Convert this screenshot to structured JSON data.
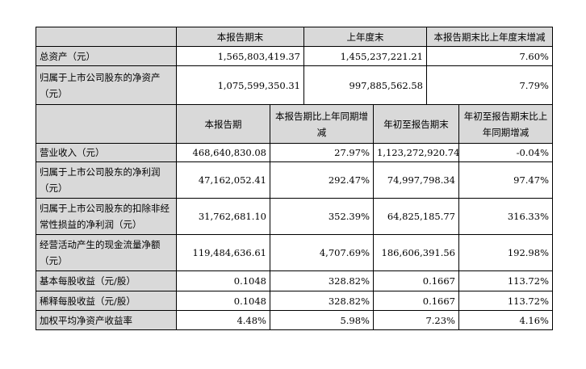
{
  "section1": {
    "headers": [
      "本报告期末",
      "上年度末",
      "本报告期末比上年度末增减"
    ],
    "rows": [
      {
        "label": "总资产（元）",
        "v1": "1,565,803,419.37",
        "v2": "1,455,237,221.21",
        "v3": "7.60%"
      },
      {
        "label": "归属于上市公司股东的净资产（元）",
        "v1": "1,075,599,350.31",
        "v2": "997,885,562.58",
        "v3": "7.79%"
      }
    ]
  },
  "section2": {
    "headers": [
      "本报告期",
      "本报告期比上年同期增减",
      "年初至报告期末",
      "年初至报告期末比上年同期增减"
    ],
    "rows": [
      {
        "label": "营业收入（元）",
        "v1": "468,640,830.08",
        "v2": "27.97%",
        "v3": "1,123,272,920.74",
        "v4": "-0.04%"
      },
      {
        "label": "归属于上市公司股东的净利润（元）",
        "v1": "47,162,052.41",
        "v2": "292.47%",
        "v3": "74,997,798.34",
        "v4": "97.47%"
      },
      {
        "label": "归属于上市公司股东的扣除非经常性损益的净利润（元）",
        "v1": "31,762,681.10",
        "v2": "352.39%",
        "v3": "64,825,185.77",
        "v4": "316.33%"
      },
      {
        "label": "经营活动产生的现金流量净额（元）",
        "v1": "119,484,636.61",
        "v2": "4,707.69%",
        "v3": "186,606,391.56",
        "v4": "192.98%"
      },
      {
        "label": "基本每股收益（元/股）",
        "v1": "0.1048",
        "v2": "328.82%",
        "v3": "0.1667",
        "v4": "113.72%"
      },
      {
        "label": "稀释每股收益（元/股）",
        "v1": "0.1048",
        "v2": "328.82%",
        "v3": "0.1667",
        "v4": "113.72%"
      },
      {
        "label": "加权平均净资产收益率",
        "v1": "4.48%",
        "v2": "5.98%",
        "v3": "7.23%",
        "v4": "4.16%"
      }
    ]
  }
}
